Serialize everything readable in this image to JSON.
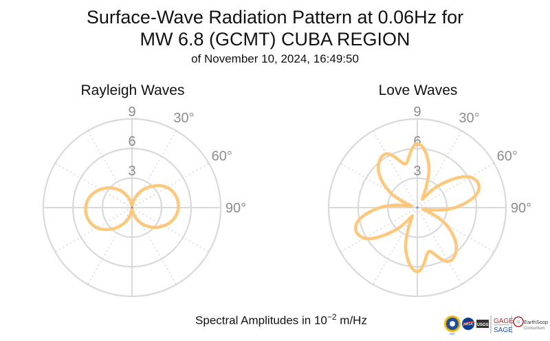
{
  "titles": {
    "line1": "Surface-Wave Radiation Pattern at 0.06Hz for",
    "line2": "MW 6.8 (GCMT) CUBA REGION",
    "line3": "of November 10, 2024, 16:49:50"
  },
  "footer": {
    "prefix": "Spectral Amplitudes in ",
    "base": "10",
    "exponent": "−2",
    "suffix": " m/Hz"
  },
  "logos": {
    "nsf": "NSF",
    "nasa": "NASA",
    "usgs": "USGS",
    "gage": "GAGE",
    "sage": "SAGE",
    "earthscope_line1": "EarthScope",
    "earthscope_line2": "Consortium"
  },
  "colors": {
    "curve": "#fdc87b",
    "grid": "#d9d9d9",
    "tick_text": "#8c8c8c"
  },
  "chart_data": [
    {
      "type": "polar-line",
      "title": "Rayleigh Waves",
      "r_ticks": [
        3,
        6,
        9
      ],
      "r_tick_labels": [
        "3",
        "6",
        "9"
      ],
      "angle_tick_labels": [
        "30°",
        "60°",
        "90°"
      ],
      "rlim": [
        0,
        9
      ],
      "theta_deg": [
        0,
        15,
        30,
        45,
        60,
        75,
        90,
        105,
        120,
        135,
        150,
        165,
        180,
        195,
        210,
        225,
        240,
        255,
        270,
        285,
        300,
        315,
        330,
        345,
        360
      ],
      "r": [
        0.0,
        0.9,
        2.0,
        3.1,
        4.1,
        4.6,
        4.7,
        4.4,
        3.7,
        2.8,
        1.8,
        0.8,
        0.0,
        0.9,
        2.0,
        3.1,
        4.1,
        4.6,
        4.7,
        4.4,
        3.7,
        2.8,
        1.8,
        0.8,
        0.0
      ]
    },
    {
      "type": "polar-line",
      "title": "Love Waves",
      "r_ticks": [
        3,
        6,
        9
      ],
      "r_tick_labels": [
        "3",
        "6",
        "9"
      ],
      "angle_tick_labels": [
        "30°",
        "60°",
        "90°"
      ],
      "rlim": [
        0,
        9
      ],
      "theta_deg": [
        0,
        15,
        30,
        45,
        60,
        75,
        90,
        105,
        120,
        135,
        150,
        165,
        180,
        195,
        210,
        225,
        240,
        255,
        270,
        285,
        300,
        315,
        330,
        345,
        360
      ],
      "r": [
        6.5,
        4.5,
        1.0,
        3.3,
        6.2,
        6.4,
        3.8,
        0.6,
        3.3,
        5.6,
        6.3,
        4.6,
        6.5,
        4.5,
        1.0,
        3.3,
        6.2,
        6.4,
        3.8,
        0.6,
        3.3,
        5.6,
        6.3,
        4.6,
        6.5
      ]
    }
  ]
}
